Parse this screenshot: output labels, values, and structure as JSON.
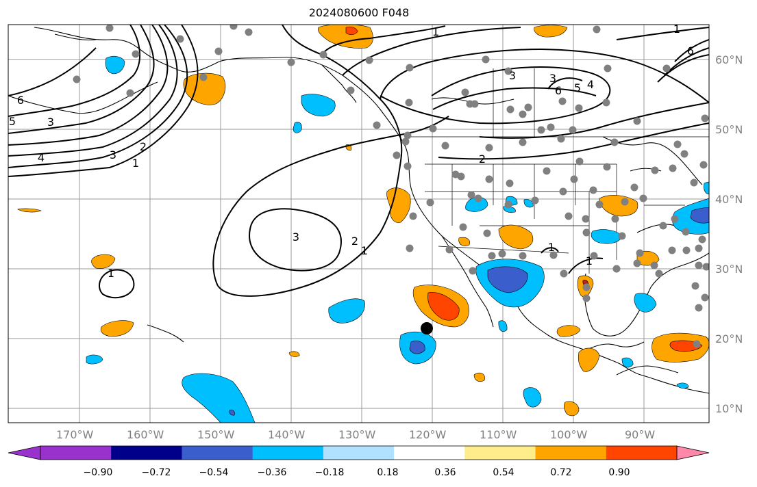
{
  "title": "2024080600 F048",
  "lat_labels": [
    "60°N",
    "50°N",
    "40°N",
    "30°N",
    "20°N",
    "10°N"
  ],
  "lon_labels": [
    "170°W",
    "160°W",
    "150°W",
    "140°W",
    "130°W",
    "120°W",
    "110°W",
    "100°W",
    "90°W"
  ],
  "contour_labels": [
    "1",
    "2",
    "3",
    "4",
    "5",
    "6"
  ],
  "colorbar": {
    "colors": [
      "#9932cc",
      "#00008b",
      "#3a5fcd",
      "#00bfff",
      "#b0e2ff",
      "#ffffff",
      "#ffec8b",
      "#ffa500",
      "#ff4500",
      "#b22222",
      "#ff88aa"
    ],
    "tick_labels": [
      "−0.90",
      "−0.72",
      "−0.54",
      "−0.36",
      "−0.18",
      "0.18",
      "0.36",
      "0.54",
      "0.72",
      "0.90"
    ]
  },
  "colors": {
    "orange": "#ffa500",
    "red_orange": "#ff4500",
    "blue": "#00bfff",
    "royal_blue": "#3a5fcd",
    "dark_red": "#b22222",
    "station": "#808080"
  }
}
